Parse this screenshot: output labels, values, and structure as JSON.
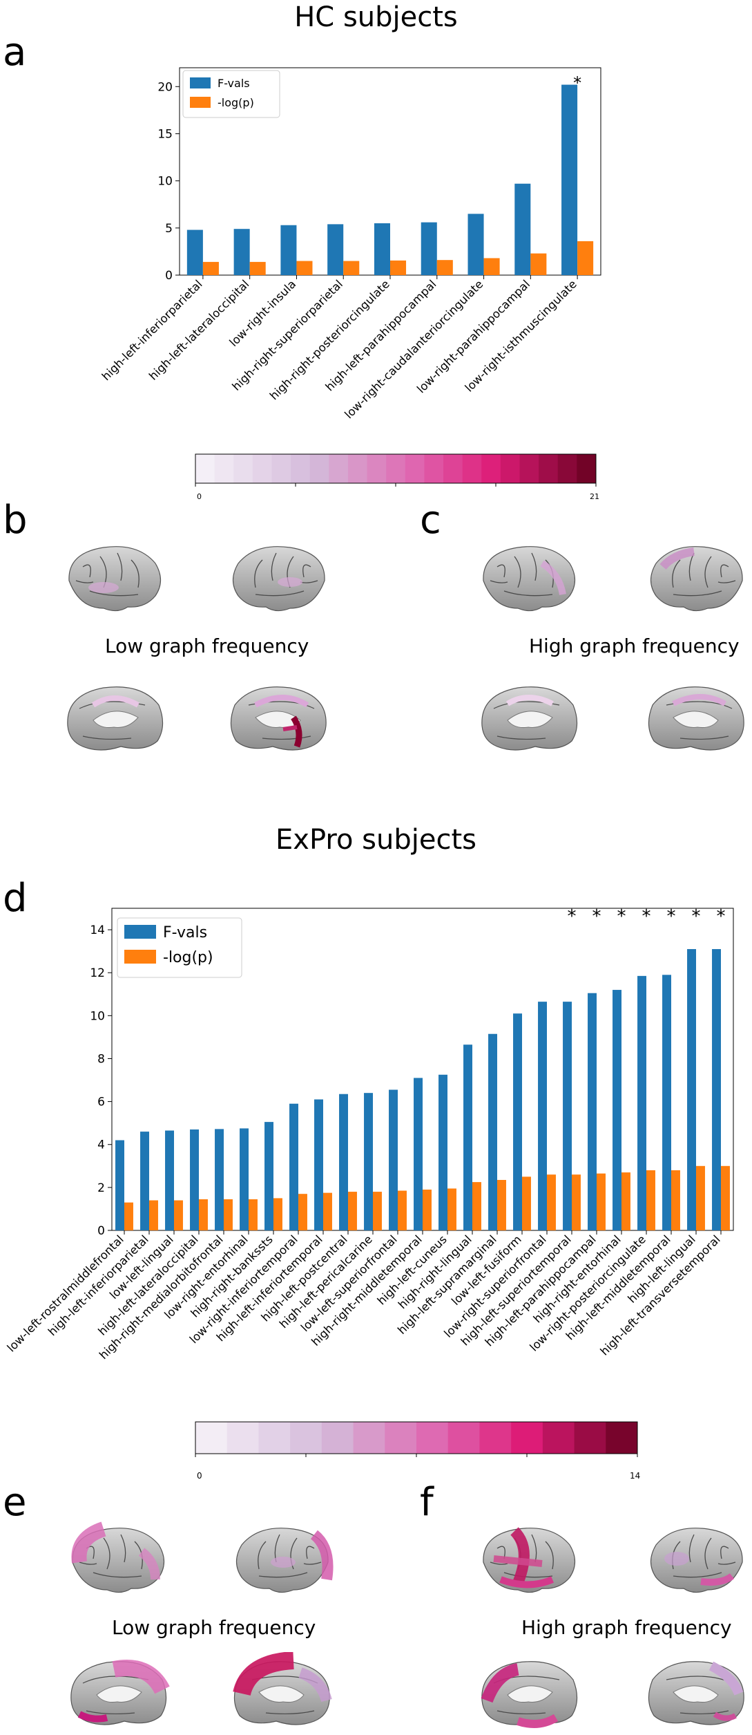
{
  "hc": {
    "title": "HC subjects",
    "panel_label": "a",
    "legend": [
      "F-vals",
      "-log(p)"
    ],
    "colorbar": {
      "min_label": "0",
      "max_label": "21",
      "max": 21
    },
    "brains": [
      {
        "panel_label": "b",
        "caption": "Low graph frequency"
      },
      {
        "panel_label": "c",
        "caption": "High graph frequency"
      }
    ]
  },
  "expro": {
    "title": "ExPro subjects",
    "panel_label": "d",
    "legend": [
      "F-vals",
      "-log(p)"
    ],
    "colorbar": {
      "min_label": "0",
      "max_label": "14",
      "max": 14
    },
    "brains": [
      {
        "panel_label": "e",
        "caption": "Low graph frequency"
      },
      {
        "panel_label": "f",
        "caption": "High graph frequency"
      }
    ]
  },
  "colors": {
    "fvals": "#1f77b4",
    "logp": "#ff7f0e",
    "cmap_low": "#f7f4f9",
    "cmap_mid": "#df65b0",
    "cmap_high": "#67001f"
  },
  "chart_data": [
    {
      "type": "bar",
      "panel": "a",
      "categories": [
        "high-left-inferiorparietal",
        "high-left-lateraloccipital",
        "low-right-insula",
        "high-right-superiorparietal",
        "high-right-posteriorcingulate",
        "high-left-parahippocampal",
        "low-right-caudalanteriorcingulate",
        "low-right-parahippocampal",
        "low-right-isthmuscingulate"
      ],
      "series": [
        {
          "name": "F-vals",
          "values": [
            4.8,
            4.9,
            5.3,
            5.4,
            5.5,
            5.6,
            6.5,
            9.7,
            20.2
          ]
        },
        {
          "name": "-log(p)",
          "values": [
            1.4,
            1.4,
            1.5,
            1.5,
            1.55,
            1.6,
            1.8,
            2.3,
            3.6
          ]
        }
      ],
      "significant_marker": "*",
      "significant": [
        false,
        false,
        false,
        false,
        false,
        false,
        false,
        false,
        true
      ],
      "yticks": [
        0,
        5,
        10,
        15,
        20
      ],
      "ylim": [
        0,
        22
      ]
    },
    {
      "type": "bar",
      "panel": "d",
      "categories": [
        "low-left-rostralmiddlefrontal",
        "high-left-inferiorparietal",
        "low-left-lingual",
        "high-left-lateraloccipital",
        "high-right-medialorbitofrontal",
        "low-right-entorhinal",
        "high-right-bankssts",
        "low-right-inferiortemporal",
        "high-left-inferiortemporal",
        "high-left-postcentral",
        "high-left-pericalcarine",
        "low-left-superiorfrontal",
        "high-right-middletemporal",
        "high-left-cuneus",
        "high-right-lingual",
        "high-left-supramarginal",
        "low-left-fusiform",
        "low-right-superiorfrontal",
        "high-left-superiortemporal",
        "high-left-parahippocampal",
        "high-right-entorhinal",
        "low-right-posteriorcingulate",
        "high-left-middletemporal",
        "high-left-lingual",
        "high-left-transversetemporal"
      ],
      "series": [
        {
          "name": "F-vals",
          "values": [
            4.2,
            4.6,
            4.65,
            4.7,
            4.72,
            4.75,
            5.05,
            5.9,
            6.1,
            6.35,
            6.4,
            6.55,
            7.1,
            7.25,
            8.65,
            9.15,
            10.1,
            10.65,
            10.65,
            11.05,
            11.2,
            11.85,
            11.9,
            13.1,
            13.1
          ]
        },
        {
          "name": "-log(p)",
          "values": [
            1.3,
            1.4,
            1.4,
            1.45,
            1.45,
            1.45,
            1.5,
            1.7,
            1.75,
            1.8,
            1.8,
            1.85,
            1.9,
            1.95,
            2.25,
            2.35,
            2.5,
            2.6,
            2.6,
            2.65,
            2.7,
            2.8,
            2.8,
            3.0,
            3.0
          ]
        }
      ],
      "significant_marker": "*",
      "significant": [
        false,
        false,
        false,
        false,
        false,
        false,
        false,
        false,
        false,
        false,
        false,
        false,
        false,
        false,
        false,
        false,
        false,
        false,
        true,
        true,
        true,
        true,
        true,
        true,
        true
      ],
      "yticks": [
        0,
        2,
        4,
        6,
        8,
        10,
        12,
        14
      ],
      "ylim": [
        0,
        15
      ]
    }
  ]
}
